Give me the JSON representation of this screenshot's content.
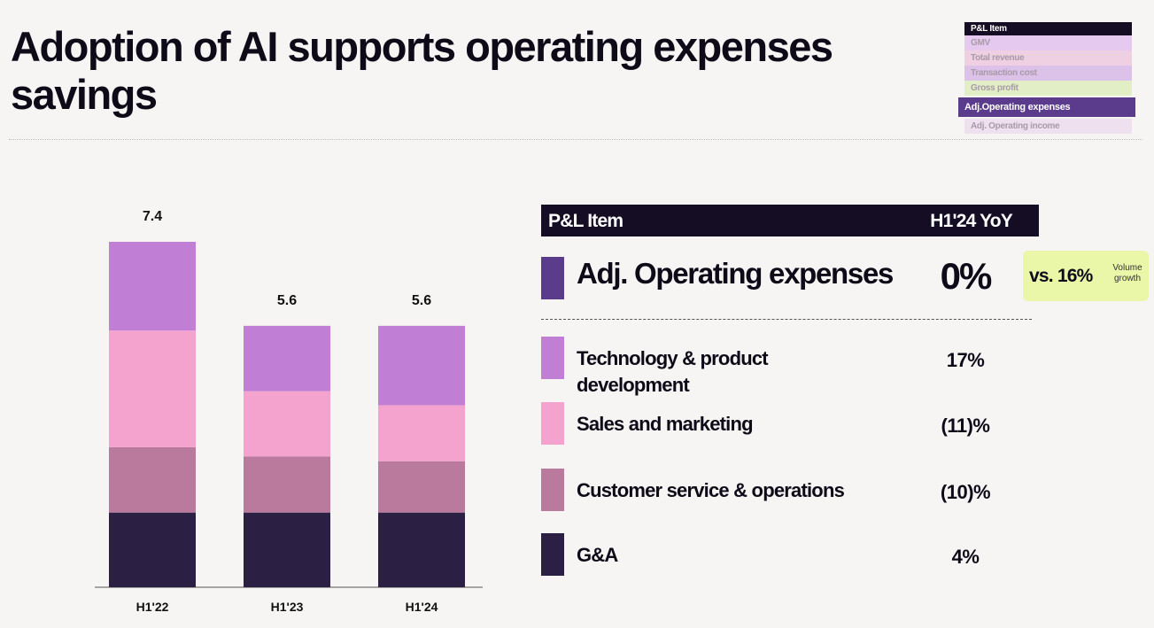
{
  "title": "Adoption of AI supports operating expenses savings",
  "chart_data": {
    "type": "bar",
    "stacked": true,
    "categories": [
      "H1'22",
      "H1'23",
      "H1'24"
    ],
    "totals": [
      7.4,
      5.6,
      5.6
    ],
    "series": [
      {
        "name": "Technology & product development",
        "color": "#c07fd4",
        "values": [
          1.9,
          1.4,
          1.7
        ]
      },
      {
        "name": "Sales and marketing",
        "color": "#f4a3cf",
        "values": [
          2.5,
          1.4,
          1.2
        ]
      },
      {
        "name": "Customer service & operations",
        "color": "#b97a9e",
        "values": [
          1.4,
          1.2,
          1.1
        ]
      },
      {
        "name": "G&A",
        "color": "#2b1f44",
        "values": [
          1.6,
          1.6,
          1.6
        ]
      }
    ]
  },
  "table": {
    "header": [
      "P&L Item",
      "H1'24 YoY"
    ],
    "total_row": {
      "label": "Adj. Operating expenses",
      "yoy": "0%",
      "color": "#5b3b8c"
    },
    "rows_yoy": [
      "17%",
      "(11)%",
      "(10)%",
      "4%"
    ],
    "callout": {
      "main": "vs. 16%",
      "note": "Volume growth"
    }
  },
  "nav": {
    "header": "P&L Item",
    "items": [
      "GMV",
      "Total revenue",
      "Transaction cost",
      "Gross profit",
      "Adj.Operating expenses",
      "Adj. Operating income"
    ],
    "colors": [
      "#e6c9ef",
      "#efcfe2",
      "#dcc1e8",
      "#e2efc6",
      "#5b3b8c",
      "#efe0ef"
    ],
    "active": 4
  }
}
